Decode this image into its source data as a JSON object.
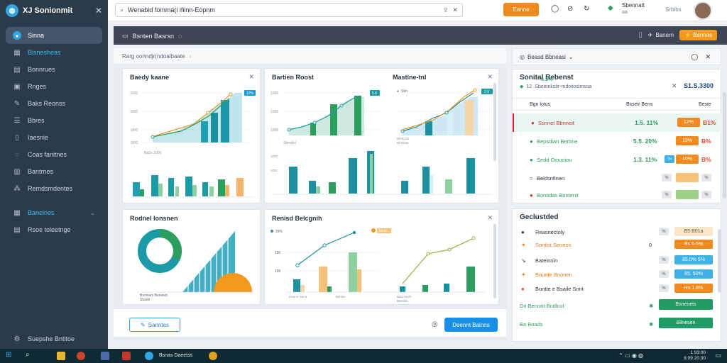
{
  "app": {
    "title": "XJ Sonionmit",
    "close_glyph": "✕",
    "logo_glyph": "◍"
  },
  "sidebar": {
    "items": [
      {
        "label": "Sinna",
        "icon": "home-icon",
        "state": "active"
      },
      {
        "label": "Bisnesheas",
        "icon": "grid-icon",
        "state": "current"
      },
      {
        "label": "Bonnrues",
        "icon": "layers-icon",
        "state": ""
      },
      {
        "label": "Rnges",
        "icon": "page-icon",
        "state": ""
      },
      {
        "label": "Baks Reonss",
        "icon": "edit-icon",
        "state": ""
      },
      {
        "label": "Bbres",
        "icon": "list-icon",
        "state": ""
      },
      {
        "label": "Iaesnie",
        "icon": "document-icon",
        "state": ""
      },
      {
        "label": "Coas fanitnes",
        "icon": "chat-icon",
        "state": ""
      },
      {
        "label": "Bantrnes",
        "icon": "calendar-icon",
        "state": ""
      },
      {
        "label": "Remdsmdentes",
        "icon": "chart-icon",
        "state": ""
      }
    ],
    "group": {
      "label": "Baneines",
      "icon": "table-icon"
    },
    "group_items": [
      {
        "label": "Rsoe toleetnge",
        "icon": "people-icon"
      }
    ],
    "footer": {
      "label": "Suepshe Bntitoe",
      "icon": "settings-icon"
    }
  },
  "topbar": {
    "search_value": "Wenabid fomma(i ifiinn-Eopnm",
    "search_icon": "⌕",
    "icons_glyphs": [
      "⇪",
      "✕"
    ],
    "orange_button": "Eanne",
    "user_name": "Sbennatt",
    "user_sub": "aa",
    "status": "Srbibs"
  },
  "subheader": {
    "title": "Bsnten Basrsn",
    "right_label": "Banern",
    "orange_button": "⚡ Bsnnas"
  },
  "breadcrumb": {
    "text": "Rarg oonndjr(ndoalbaate"
  },
  "cards": {
    "top_left": {
      "title": "Baedy kaane",
      "badge": "12%"
    },
    "top_mid_a": {
      "title": "Bartien Roost",
      "badge": "5.8",
      "sub": "Sbnatisl"
    },
    "top_mid_b": {
      "title": "Mastine-tnl",
      "badge": "2.9",
      "legend": "Sbn"
    },
    "bottom_left": {
      "title": "Rodnel Ionsnen"
    },
    "bottom_mid": {
      "title": "Renisd Belcgnih",
      "legend_a": "39%",
      "legend_b": "Sbnts"
    },
    "bottom_bar": {
      "outline_button": "Sanntes",
      "primary_button": "Deennt Bainns"
    }
  },
  "right_panel": {
    "header": "Beasd Bbneasi",
    "top_card": {
      "title": "Sonital Bebenst",
      "sub_a": "12",
      "sub_b": "Sbetonkstir-mdoiiostmssa",
      "sub_pct": "5.1%",
      "total": "S1.S.3300",
      "headers": [
        "Bgn lotus",
        "Bsseir Bens",
        "Beste"
      ],
      "rows": [
        {
          "name": "Ssnnet Bbnneit",
          "pct": "1.5. 11%",
          "pill": "12%",
          "last": "B1%",
          "color": "#c23a2b"
        },
        {
          "name": "Bepsdian Berbne",
          "pct": "5.5. 20%",
          "pill": "19%",
          "last": "B%",
          "color": "#2c9e5f"
        },
        {
          "name": "Sedd Oiouoiou",
          "pct": "1.3. 11%",
          "pill": "10%",
          "last": "B%",
          "color": "#2c9e5f"
        },
        {
          "name": "Beldsnfinen",
          "pct": "",
          "pill": "",
          "last": "",
          "color": "#333"
        },
        {
          "name": "Bontidas Bontenit",
          "pct": "",
          "pill": "",
          "last": "",
          "color": "#c23a2b"
        }
      ]
    },
    "bottom_card": {
      "title": "Geclustded",
      "rows": [
        {
          "name": "Reasnectoly",
          "icon": "●",
          "pill": "B5 B01a",
          "color": "#2b3440",
          "pill_color": "#f6e7c8"
        },
        {
          "name": "Sontist Seneos",
          "icon": "✦",
          "pill": "Bs 6.5%",
          "color": "#e07a1c",
          "pill_color": "#f28a1f"
        },
        {
          "name": "Bateinnin",
          "icon": "↘",
          "pill": "85.0% 5%",
          "color": "#2b3440",
          "pill_color": "#3fb0e8"
        },
        {
          "name": "Baunte Bnonen",
          "icon": "✦",
          "pill": "85. 50%",
          "color": "#e07a1c",
          "pill_color": "#3fb0e8"
        },
        {
          "name": "Bontte e Bsaile Snnt",
          "icon": "●",
          "pill": "Rs 1.8%",
          "color": "#2b3440",
          "pill_color": "#f28a1f"
        },
        {
          "name": "Dn Benunt Bndlcut",
          "icon": "",
          "pill": "Bsnenets",
          "color": "#2c9e5f",
          "pill_color": "#1f9b63"
        },
        {
          "name": "Ba Bnads",
          "icon": "",
          "pill": "Bllnesen",
          "color": "#2c9e5f",
          "pill_color": "#1f9b63"
        }
      ]
    }
  },
  "taskbar": {
    "label": "Bsnas Daeetss",
    "time": "1 93:00",
    "date": "8.09.20.30"
  },
  "colors": {
    "sidebar": "#2b3b4c",
    "accent_blue": "#1890e8",
    "accent_orange": "#f28a1f",
    "teal": "#1c9aa8",
    "green": "#2c9e5f"
  }
}
